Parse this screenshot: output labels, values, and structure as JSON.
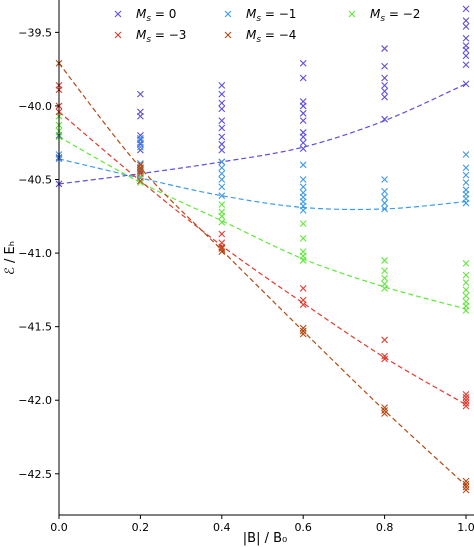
{
  "chart_data": {
    "type": "scatter",
    "title": "",
    "xlabel": "|B| / B₀",
    "ylabel": "ℰ / Eₕ",
    "xlim": [
      0.0,
      1.0
    ],
    "ylim": [
      -42.78,
      -39.28
    ],
    "x_ticks": [
      0.0,
      0.2,
      0.4,
      0.6,
      0.8,
      1.0
    ],
    "x_tick_labels": [
      "0.0",
      "0.2",
      "0.4",
      "0.6",
      "0.8",
      "1.0"
    ],
    "y_ticks": [
      -39.5,
      -40.0,
      -40.5,
      -41.0,
      -41.5,
      -42.0,
      -42.5
    ],
    "y_tick_labels": [
      "−39.5",
      "−40.0",
      "−40.5",
      "−41.0",
      "−41.5",
      "−42.0",
      "−42.5"
    ],
    "grid": false,
    "legend": {
      "position": "top",
      "columns": 3
    },
    "series": [
      {
        "name": "M_s = 0",
        "label": "M",
        "sub": "s",
        "rhs": " = 0",
        "color": "#5b4fe0",
        "points": [
          [
            0.0,
            -40.53
          ],
          [
            0.0,
            -40.35
          ],
          [
            0.0,
            -40.2
          ],
          [
            0.2,
            -40.45
          ],
          [
            0.2,
            -40.3
          ],
          [
            0.2,
            -40.26
          ],
          [
            0.2,
            -40.23
          ],
          [
            0.2,
            -40.2
          ],
          [
            0.2,
            -40.07
          ],
          [
            0.2,
            -40.04
          ],
          [
            0.2,
            -39.92
          ],
          [
            0.4,
            -40.38
          ],
          [
            0.4,
            -40.3
          ],
          [
            0.4,
            -40.26
          ],
          [
            0.4,
            -40.21
          ],
          [
            0.4,
            -40.15
          ],
          [
            0.4,
            -40.1
          ],
          [
            0.4,
            -40.02
          ],
          [
            0.4,
            -39.98
          ],
          [
            0.4,
            -39.92
          ],
          [
            0.4,
            -39.86
          ],
          [
            0.6,
            -40.29
          ],
          [
            0.6,
            -40.25
          ],
          [
            0.6,
            -40.21
          ],
          [
            0.6,
            -40.18
          ],
          [
            0.6,
            -40.1
          ],
          [
            0.6,
            -40.05
          ],
          [
            0.6,
            -40.0
          ],
          [
            0.6,
            -39.97
          ],
          [
            0.6,
            -39.81
          ],
          [
            0.6,
            -39.71
          ],
          [
            0.8,
            -40.09
          ],
          [
            0.8,
            -39.94
          ],
          [
            0.8,
            -39.9
          ],
          [
            0.8,
            -39.86
          ],
          [
            0.8,
            -39.81
          ],
          [
            0.8,
            -39.73
          ],
          [
            0.8,
            -39.61
          ],
          [
            1.0,
            -39.85
          ],
          [
            1.0,
            -39.72
          ],
          [
            1.0,
            -39.66
          ],
          [
            1.0,
            -39.62
          ],
          [
            1.0,
            -39.59
          ],
          [
            1.0,
            -39.54
          ],
          [
            1.0,
            -39.46
          ],
          [
            1.0,
            -39.42
          ],
          [
            1.0,
            -39.34
          ]
        ],
        "curve": [
          -40.53,
          -40.46,
          -40.38,
          -40.28,
          -40.1,
          -39.85
        ]
      },
      {
        "name": "M_s = −1",
        "label": "M",
        "sub": "s",
        "rhs": " = −1",
        "color": "#3f9ae6",
        "points": [
          [
            0.0,
            -40.36
          ],
          [
            0.0,
            -40.33
          ],
          [
            0.2,
            -40.49
          ],
          [
            0.2,
            -40.43
          ],
          [
            0.2,
            -40.39
          ],
          [
            0.2,
            -40.28
          ],
          [
            0.2,
            -40.25
          ],
          [
            0.2,
            -40.22
          ],
          [
            0.4,
            -40.61
          ],
          [
            0.4,
            -40.55
          ],
          [
            0.4,
            -40.5
          ],
          [
            0.4,
            -40.46
          ],
          [
            0.4,
            -40.42
          ],
          [
            0.4,
            -40.38
          ],
          [
            0.6,
            -40.71
          ],
          [
            0.6,
            -40.68
          ],
          [
            0.6,
            -40.65
          ],
          [
            0.6,
            -40.62
          ],
          [
            0.6,
            -40.59
          ],
          [
            0.6,
            -40.55
          ],
          [
            0.6,
            -40.5
          ],
          [
            0.6,
            -40.4
          ],
          [
            0.8,
            -40.7
          ],
          [
            0.8,
            -40.66
          ],
          [
            0.8,
            -40.62
          ],
          [
            0.8,
            -40.58
          ],
          [
            0.8,
            -40.5
          ],
          [
            1.0,
            -40.66
          ],
          [
            1.0,
            -40.63
          ],
          [
            1.0,
            -40.6
          ],
          [
            1.0,
            -40.57
          ],
          [
            1.0,
            -40.52
          ],
          [
            1.0,
            -40.47
          ],
          [
            1.0,
            -40.42
          ],
          [
            1.0,
            -40.33
          ]
        ],
        "curve": [
          -40.36,
          -40.49,
          -40.61,
          -40.69,
          -40.7,
          -40.65
        ]
      },
      {
        "name": "M_s = −2",
        "label": "M",
        "sub": "s",
        "rhs": " = −2",
        "color": "#60e83a",
        "points": [
          [
            0.0,
            -40.21
          ],
          [
            0.0,
            -40.17
          ],
          [
            0.0,
            -40.13
          ],
          [
            0.0,
            -40.07
          ],
          [
            0.2,
            -40.52
          ],
          [
            0.2,
            -40.48
          ],
          [
            0.2,
            -40.44
          ],
          [
            0.4,
            -40.79
          ],
          [
            0.4,
            -40.75
          ],
          [
            0.4,
            -40.72
          ],
          [
            0.4,
            -40.67
          ],
          [
            0.6,
            -41.05
          ],
          [
            0.6,
            -41.02
          ],
          [
            0.6,
            -40.99
          ],
          [
            0.6,
            -40.9
          ],
          [
            0.6,
            -40.8
          ],
          [
            0.8,
            -41.24
          ],
          [
            0.8,
            -41.21
          ],
          [
            0.8,
            -41.17
          ],
          [
            0.8,
            -41.12
          ],
          [
            0.8,
            -41.05
          ],
          [
            1.0,
            -41.39
          ],
          [
            1.0,
            -41.36
          ],
          [
            1.0,
            -41.33
          ],
          [
            1.0,
            -41.29
          ],
          [
            1.0,
            -41.25
          ],
          [
            1.0,
            -41.2
          ],
          [
            1.0,
            -41.15
          ],
          [
            1.0,
            -41.07
          ]
        ],
        "curve": [
          -40.21,
          -40.52,
          -40.78,
          -41.04,
          -41.23,
          -41.38
        ]
      },
      {
        "name": "M_s = −3",
        "label": "M",
        "sub": "s",
        "rhs": " = −3",
        "color": "#e23a2e",
        "points": [
          [
            0.0,
            -40.04
          ],
          [
            0.0,
            -40.0
          ],
          [
            0.0,
            -39.89
          ],
          [
            0.0,
            -39.86
          ],
          [
            0.2,
            -40.51
          ],
          [
            0.2,
            -40.46
          ],
          [
            0.2,
            -40.42
          ],
          [
            0.4,
            -40.96
          ],
          [
            0.4,
            -40.93
          ],
          [
            0.4,
            -40.87
          ],
          [
            0.6,
            -41.35
          ],
          [
            0.6,
            -41.32
          ],
          [
            0.6,
            -41.24
          ],
          [
            0.8,
            -41.72
          ],
          [
            0.8,
            -41.7
          ],
          [
            0.8,
            -41.59
          ],
          [
            1.0,
            -42.04
          ],
          [
            1.0,
            -42.02
          ],
          [
            1.0,
            -42.0
          ],
          [
            1.0,
            -41.98
          ],
          [
            1.0,
            -41.96
          ]
        ],
        "curve": [
          -40.04,
          -40.51,
          -40.95,
          -41.34,
          -41.71,
          -42.03
        ]
      },
      {
        "name": "M_s = −4",
        "label": "M",
        "sub": "s",
        "rhs": " = −4",
        "color": "#b44a12",
        "points": [
          [
            0.0,
            -39.71
          ],
          [
            0.2,
            -40.44
          ],
          [
            0.2,
            -40.42
          ],
          [
            0.2,
            -40.4
          ],
          [
            0.4,
            -40.99
          ],
          [
            0.4,
            -40.97
          ],
          [
            0.6,
            -41.55
          ],
          [
            0.6,
            -41.53
          ],
          [
            0.6,
            -41.51
          ],
          [
            0.8,
            -42.09
          ],
          [
            0.8,
            -42.07
          ],
          [
            0.8,
            -42.05
          ],
          [
            1.0,
            -42.61
          ],
          [
            1.0,
            -42.59
          ],
          [
            1.0,
            -42.57
          ],
          [
            1.0,
            -42.55
          ]
        ],
        "curve": [
          -39.71,
          -40.42,
          -40.98,
          -41.53,
          -42.07,
          -42.58
        ]
      }
    ]
  }
}
